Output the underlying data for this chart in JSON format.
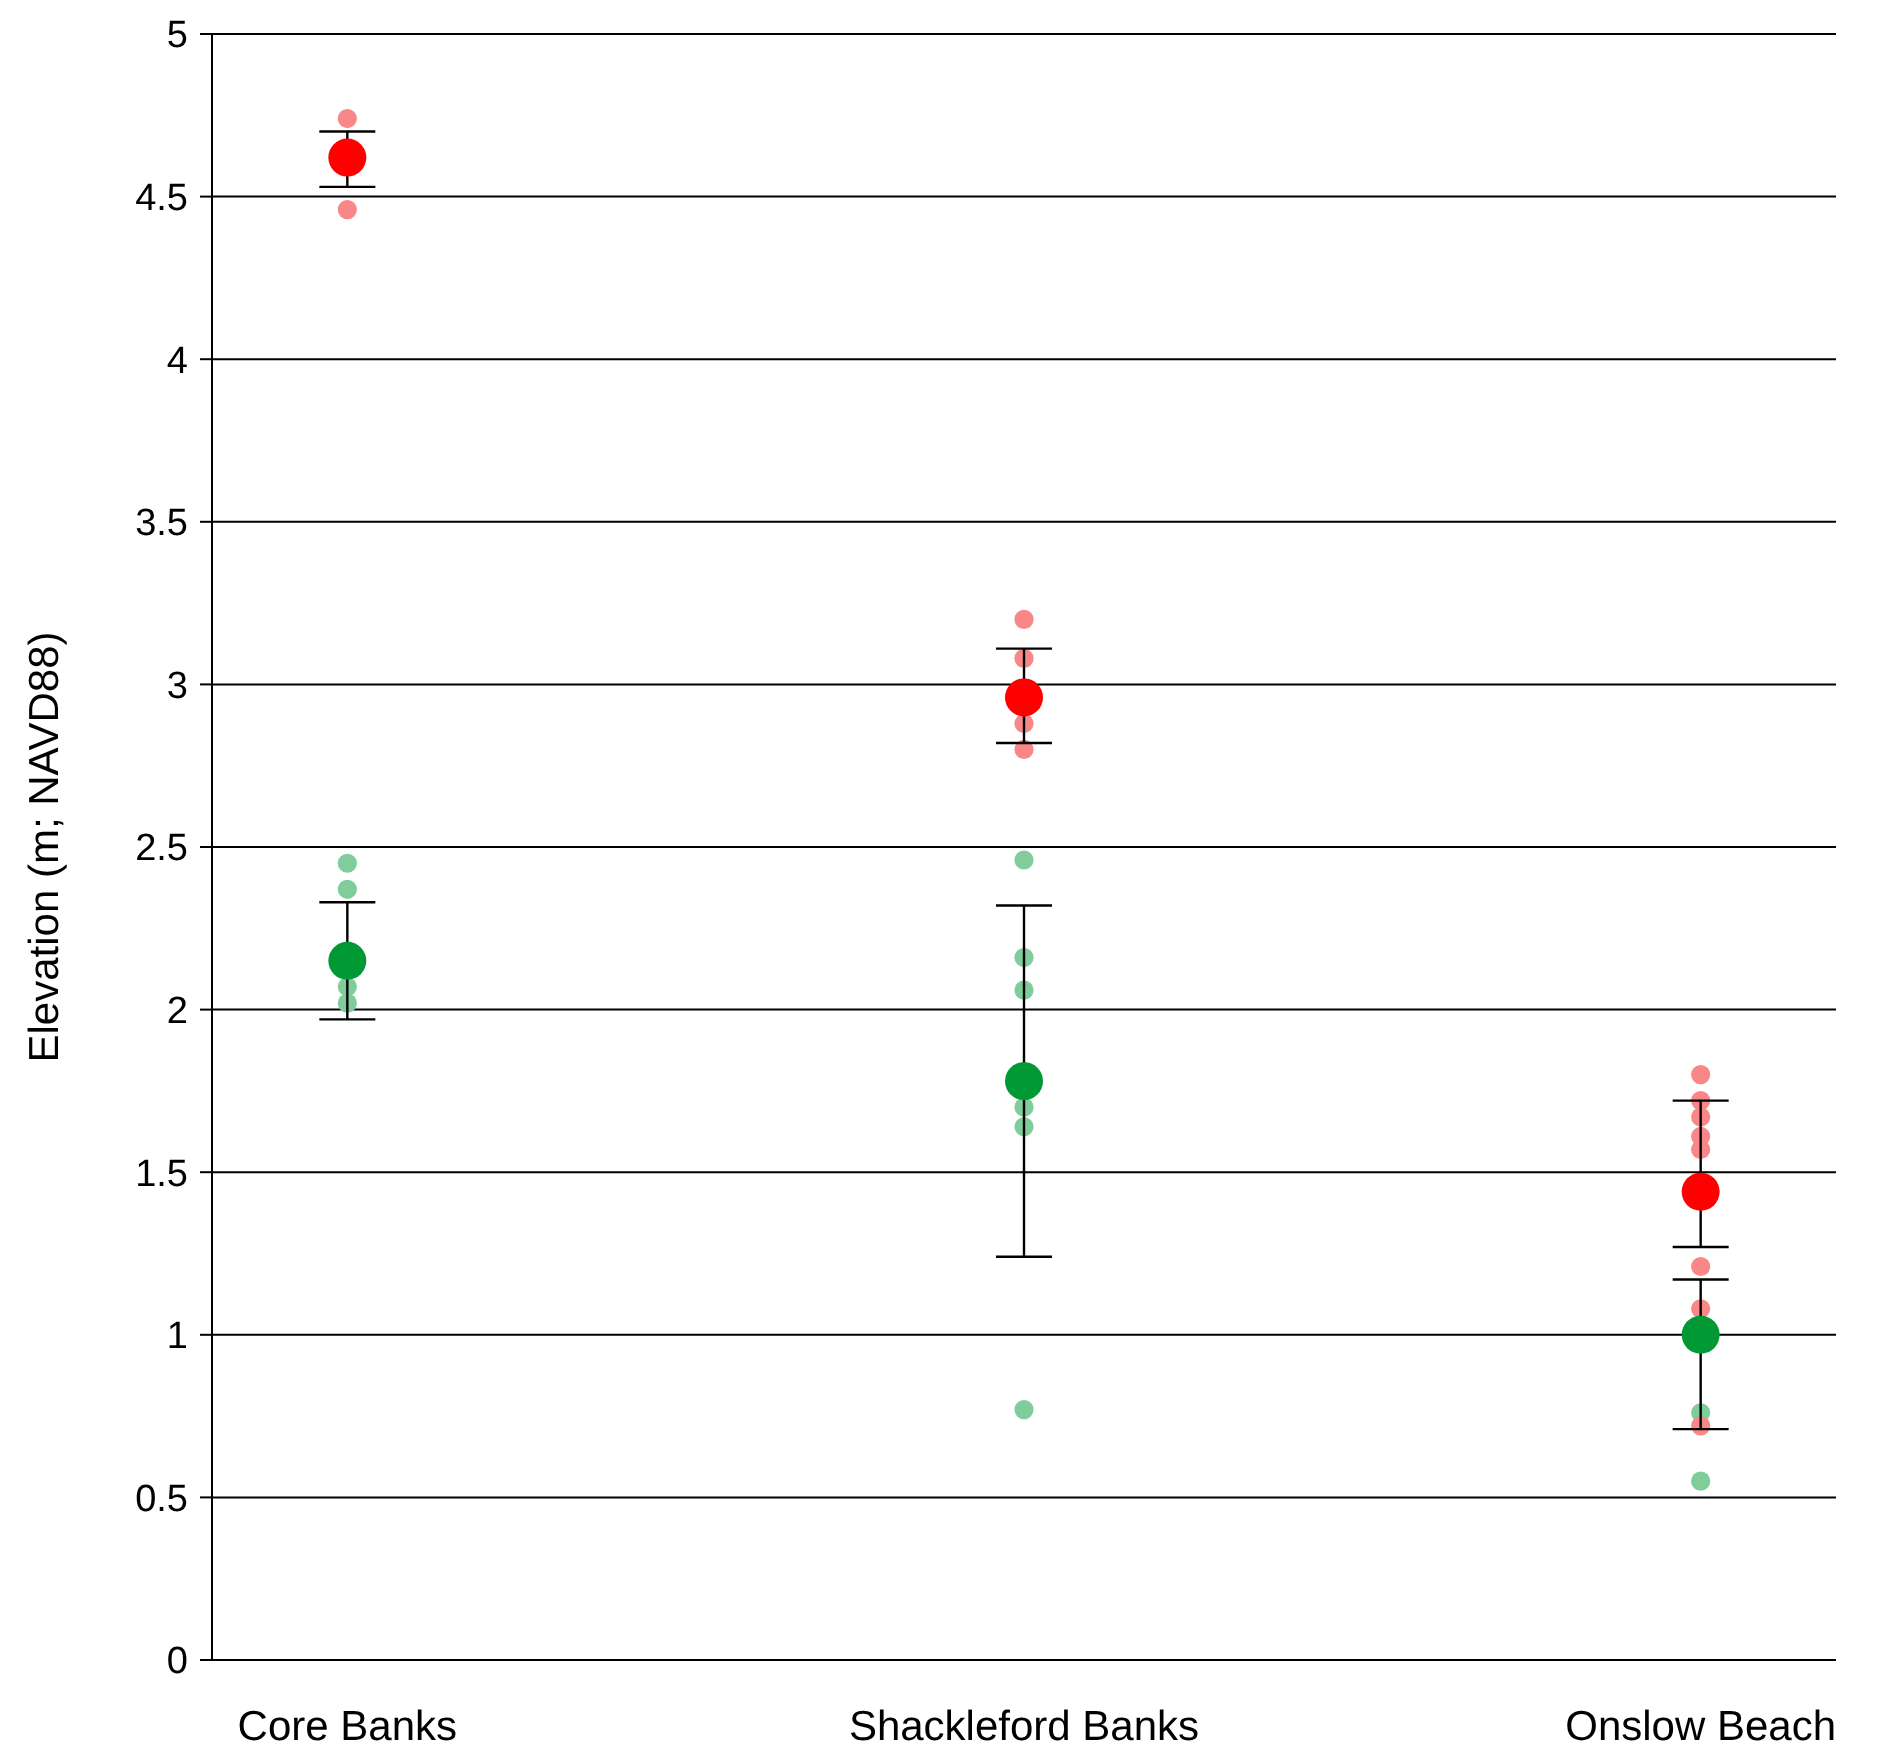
{
  "chart_data": {
    "type": "scatter",
    "ylabel": "Elevation (m; NAVD88)",
    "categories": [
      "Core Banks",
      "Shackleford Banks",
      "Onslow Beach"
    ],
    "ylim": [
      0,
      5
    ],
    "yticks": [
      0,
      0.5,
      1,
      1.5,
      2,
      2.5,
      3,
      3.5,
      4,
      4.5,
      5
    ],
    "grid": "y",
    "marker": "circle",
    "series": [
      {
        "color": "#80cc9a",
        "x": [
          "Core Banks",
          "Core Banks",
          "Core Banks",
          "Core Banks",
          "Shackleford Banks",
          "Shackleford Banks",
          "Shackleford Banks",
          "Shackleford Banks",
          "Shackleford Banks",
          "Shackleford Banks",
          "Onslow Beach",
          "Onslow Beach"
        ],
        "values": [
          2.45,
          2.37,
          2.07,
          2.02,
          2.46,
          2.16,
          2.06,
          1.7,
          1.64,
          0.77,
          0.76,
          0.55
        ]
      },
      {
        "color": "#f98787",
        "x": [
          "Core Banks",
          "Core Banks",
          "Shackleford Banks",
          "Shackleford Banks",
          "Shackleford Banks",
          "Shackleford Banks",
          "Onslow Beach",
          "Onslow Beach",
          "Onslow Beach",
          "Onslow Beach",
          "Onslow Beach",
          "Onslow Beach",
          "Onslow Beach",
          "Onslow Beach"
        ],
        "values": [
          4.74,
          4.46,
          3.2,
          3.08,
          2.88,
          2.8,
          1.8,
          1.72,
          1.67,
          1.61,
          1.57,
          1.21,
          1.08,
          0.72
        ]
      },
      {
        "color": "#ff0000",
        "x": [
          "Core Banks",
          "Shackleford Banks",
          "Onslow Beach"
        ],
        "values": [
          4.62,
          2.96,
          1.44
        ],
        "errors": [
          [
            4.53,
            4.7
          ],
          [
            2.82,
            3.11
          ],
          [
            1.27,
            1.72
          ]
        ]
      },
      {
        "color": "#009933",
        "x": [
          "Core Banks",
          "Shackleford Banks",
          "Onslow Beach"
        ],
        "values": [
          2.15,
          1.78,
          1.0
        ],
        "errors": [
          [
            1.97,
            2.33
          ],
          [
            1.24,
            2.32
          ],
          [
            0.71,
            1.17
          ]
        ]
      }
    ]
  }
}
